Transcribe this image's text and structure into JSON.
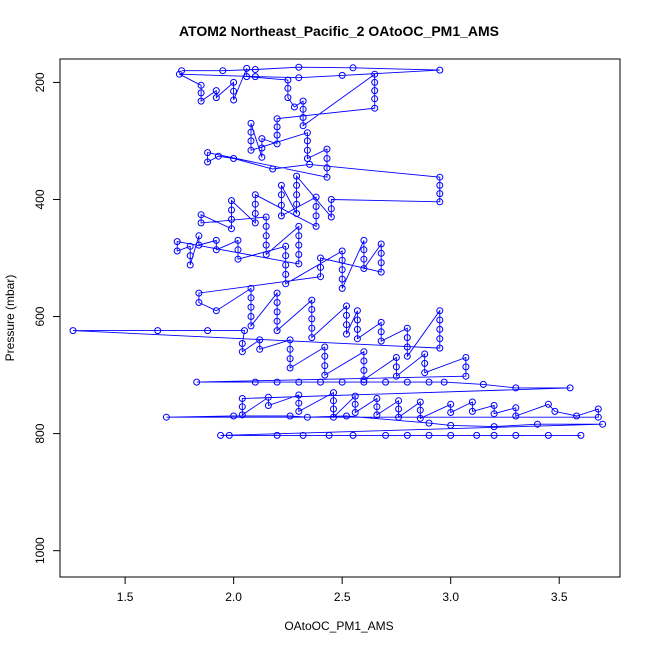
{
  "chart_data": {
    "type": "scatter",
    "title": "ATOM2 Northeast_Pacific_2 OAtoOC_PM1_AMS",
    "xlabel": "OAtoOC_PM1_AMS",
    "ylabel": "Pressure (mbar)",
    "xlim": [
      1.2,
      3.78
    ],
    "ylim": [
      1045,
      160
    ],
    "y_inverted": true,
    "grid": false,
    "legend": "none",
    "x_ticks": [
      1.5,
      2.0,
      2.5,
      3.0,
      3.5
    ],
    "x_tick_labels": [
      "1.5",
      "2.0",
      "2.5",
      "3.0",
      "3.5"
    ],
    "y_ticks": [
      200,
      400,
      600,
      800,
      1000
    ],
    "y_tick_labels": [
      "200",
      "400",
      "600",
      "800",
      "1000"
    ],
    "colors": {
      "series": "#0000ff",
      "axis": "#000000"
    },
    "series": [
      {
        "marker": "open-circle",
        "connected": true,
        "points": [
          [
            1.76,
            180
          ],
          [
            1.95,
            180
          ],
          [
            2.1,
            178
          ],
          [
            2.3,
            174
          ],
          [
            2.55,
            175
          ],
          [
            2.95,
            179
          ],
          [
            2.5,
            188
          ],
          [
            2.3,
            192
          ],
          [
            2.1,
            190
          ],
          [
            1.75,
            186
          ],
          [
            1.85,
            205
          ],
          [
            1.85,
            218
          ],
          [
            1.85,
            232
          ],
          [
            1.92,
            214
          ],
          [
            1.92,
            226
          ],
          [
            2.0,
            200
          ],
          [
            2.0,
            215
          ],
          [
            2.0,
            230
          ],
          [
            2.06,
            176
          ],
          [
            2.06,
            190
          ],
          [
            2.25,
            196
          ],
          [
            2.25,
            210
          ],
          [
            2.25,
            226
          ],
          [
            2.28,
            242
          ],
          [
            2.32,
            232
          ],
          [
            2.32,
            246
          ],
          [
            2.32,
            260
          ],
          [
            2.32,
            274
          ],
          [
            2.65,
            186
          ],
          [
            2.65,
            200
          ],
          [
            2.65,
            214
          ],
          [
            2.65,
            228
          ],
          [
            2.65,
            244
          ],
          [
            2.2,
            262
          ],
          [
            2.2,
            276
          ],
          [
            2.2,
            290
          ],
          [
            2.2,
            305
          ],
          [
            2.13,
            296
          ],
          [
            2.13,
            312
          ],
          [
            2.13,
            328
          ],
          [
            2.08,
            270
          ],
          [
            2.08,
            285
          ],
          [
            2.08,
            300
          ],
          [
            2.08,
            316
          ],
          [
            2.34,
            286
          ],
          [
            2.34,
            300
          ],
          [
            2.34,
            316
          ],
          [
            2.34,
            330
          ],
          [
            2.43,
            314
          ],
          [
            2.43,
            330
          ],
          [
            2.43,
            346
          ],
          [
            2.43,
            362
          ],
          [
            1.88,
            320
          ],
          [
            1.88,
            336
          ],
          [
            1.93,
            326
          ],
          [
            2.0,
            330
          ],
          [
            2.18,
            348
          ],
          [
            2.35,
            340
          ],
          [
            2.95,
            362
          ],
          [
            2.95,
            376
          ],
          [
            2.95,
            390
          ],
          [
            2.95,
            404
          ],
          [
            2.45,
            400
          ],
          [
            2.45,
            416
          ],
          [
            2.45,
            430
          ],
          [
            2.29,
            360
          ],
          [
            2.29,
            376
          ],
          [
            2.29,
            392
          ],
          [
            2.29,
            408
          ],
          [
            2.29,
            424
          ],
          [
            2.22,
            376
          ],
          [
            2.22,
            392
          ],
          [
            2.22,
            410
          ],
          [
            2.22,
            428
          ],
          [
            2.38,
            396
          ],
          [
            2.38,
            412
          ],
          [
            2.38,
            428
          ],
          [
            2.38,
            446
          ],
          [
            2.1,
            392
          ],
          [
            2.1,
            408
          ],
          [
            2.1,
            424
          ],
          [
            2.1,
            440
          ],
          [
            1.99,
            402
          ],
          [
            1.99,
            418
          ],
          [
            1.99,
            434
          ],
          [
            1.99,
            450
          ],
          [
            1.85,
            426
          ],
          [
            1.85,
            440
          ],
          [
            2.15,
            430
          ],
          [
            2.15,
            446
          ],
          [
            2.15,
            462
          ],
          [
            2.15,
            478
          ],
          [
            2.15,
            494
          ],
          [
            2.3,
            446
          ],
          [
            2.3,
            462
          ],
          [
            2.3,
            478
          ],
          [
            2.3,
            494
          ],
          [
            2.3,
            510
          ],
          [
            1.74,
            472
          ],
          [
            1.74,
            488
          ],
          [
            1.8,
            480
          ],
          [
            1.8,
            496
          ],
          [
            1.8,
            512
          ],
          [
            1.84,
            462
          ],
          [
            1.84,
            478
          ],
          [
            1.92,
            470
          ],
          [
            1.92,
            486
          ],
          [
            2.02,
            470
          ],
          [
            2.02,
            486
          ],
          [
            2.02,
            502
          ],
          [
            2.24,
            480
          ],
          [
            2.24,
            496
          ],
          [
            2.24,
            512
          ],
          [
            2.24,
            528
          ],
          [
            2.24,
            544
          ],
          [
            2.5,
            488
          ],
          [
            2.5,
            504
          ],
          [
            2.5,
            520
          ],
          [
            2.5,
            536
          ],
          [
            2.5,
            552
          ],
          [
            2.6,
            470
          ],
          [
            2.6,
            486
          ],
          [
            2.6,
            502
          ],
          [
            2.6,
            518
          ],
          [
            2.68,
            476
          ],
          [
            2.68,
            492
          ],
          [
            2.68,
            508
          ],
          [
            2.68,
            524
          ],
          [
            2.4,
            500
          ],
          [
            2.4,
            516
          ],
          [
            2.4,
            532
          ],
          [
            1.84,
            560
          ],
          [
            1.84,
            576
          ],
          [
            1.92,
            590
          ],
          [
            2.08,
            552
          ],
          [
            2.08,
            568
          ],
          [
            2.08,
            584
          ],
          [
            2.08,
            600
          ],
          [
            2.08,
            616
          ],
          [
            2.2,
            560
          ],
          [
            2.2,
            576
          ],
          [
            2.2,
            592
          ],
          [
            2.2,
            608
          ],
          [
            2.2,
            624
          ],
          [
            2.36,
            572
          ],
          [
            2.36,
            588
          ],
          [
            2.36,
            604
          ],
          [
            2.36,
            620
          ],
          [
            2.36,
            636
          ],
          [
            2.52,
            582
          ],
          [
            2.52,
            598
          ],
          [
            2.52,
            614
          ],
          [
            2.52,
            630
          ],
          [
            2.57,
            590
          ],
          [
            2.57,
            606
          ],
          [
            2.57,
            622
          ],
          [
            2.57,
            638
          ],
          [
            2.68,
            610
          ],
          [
            2.68,
            626
          ],
          [
            2.68,
            642
          ],
          [
            2.8,
            620
          ],
          [
            2.8,
            636
          ],
          [
            2.8,
            652
          ],
          [
            2.8,
            668
          ],
          [
            2.95,
            590
          ],
          [
            2.95,
            606
          ],
          [
            2.95,
            622
          ],
          [
            2.95,
            638
          ],
          [
            2.95,
            654
          ],
          [
            1.26,
            624
          ],
          [
            1.65,
            624
          ],
          [
            1.88,
            624
          ],
          [
            2.05,
            624
          ],
          [
            2.04,
            646
          ],
          [
            2.04,
            660
          ],
          [
            2.12,
            640
          ],
          [
            2.12,
            656
          ],
          [
            2.26,
            640
          ],
          [
            2.26,
            656
          ],
          [
            2.26,
            672
          ],
          [
            2.26,
            688
          ],
          [
            2.42,
            652
          ],
          [
            2.42,
            668
          ],
          [
            2.42,
            684
          ],
          [
            2.42,
            700
          ],
          [
            2.6,
            660
          ],
          [
            2.6,
            676
          ],
          [
            2.6,
            692
          ],
          [
            2.6,
            708
          ],
          [
            2.75,
            670
          ],
          [
            2.75,
            686
          ],
          [
            2.75,
            702
          ],
          [
            2.88,
            664
          ],
          [
            2.88,
            680
          ],
          [
            2.88,
            696
          ],
          [
            3.07,
            670
          ],
          [
            3.07,
            686
          ],
          [
            3.07,
            702
          ],
          [
            1.83,
            712
          ],
          [
            2.1,
            712
          ],
          [
            2.2,
            712
          ],
          [
            2.3,
            712
          ],
          [
            2.4,
            712
          ],
          [
            2.5,
            712
          ],
          [
            2.6,
            712
          ],
          [
            2.7,
            712
          ],
          [
            2.8,
            712
          ],
          [
            2.9,
            712
          ],
          [
            2.97,
            712
          ],
          [
            3.15,
            716
          ],
          [
            3.3,
            722
          ],
          [
            3.55,
            722
          ],
          [
            2.04,
            740
          ],
          [
            2.04,
            754
          ],
          [
            2.04,
            768
          ],
          [
            2.16,
            738
          ],
          [
            2.16,
            752
          ],
          [
            2.3,
            734
          ],
          [
            2.3,
            748
          ],
          [
            2.3,
            762
          ],
          [
            2.46,
            730
          ],
          [
            2.46,
            744
          ],
          [
            2.46,
            758
          ],
          [
            2.46,
            772
          ],
          [
            2.56,
            736
          ],
          [
            2.56,
            750
          ],
          [
            2.56,
            764
          ],
          [
            2.66,
            740
          ],
          [
            2.66,
            754
          ],
          [
            2.66,
            768
          ],
          [
            2.76,
            744
          ],
          [
            2.76,
            758
          ],
          [
            2.76,
            772
          ],
          [
            2.86,
            746
          ],
          [
            2.86,
            760
          ],
          [
            2.86,
            774
          ],
          [
            3.0,
            750
          ],
          [
            3.0,
            764
          ],
          [
            3.1,
            746
          ],
          [
            3.1,
            762
          ],
          [
            3.2,
            752
          ],
          [
            3.2,
            766
          ],
          [
            3.3,
            756
          ],
          [
            3.3,
            770
          ],
          [
            3.45,
            750
          ],
          [
            3.48,
            762
          ],
          [
            3.58,
            770
          ],
          [
            3.68,
            758
          ],
          [
            3.68,
            772
          ],
          [
            1.69,
            772
          ],
          [
            2.0,
            770
          ],
          [
            2.26,
            770
          ],
          [
            2.34,
            772
          ],
          [
            2.52,
            770
          ],
          [
            2.9,
            782
          ],
          [
            3.0,
            786
          ],
          [
            3.2,
            788
          ],
          [
            3.4,
            784
          ],
          [
            3.7,
            784
          ],
          [
            1.94,
            803
          ],
          [
            1.98,
            803
          ],
          [
            2.2,
            803
          ],
          [
            2.32,
            803
          ],
          [
            2.44,
            803
          ],
          [
            2.55,
            803
          ],
          [
            2.7,
            803
          ],
          [
            2.8,
            803
          ],
          [
            2.9,
            803
          ],
          [
            3.0,
            803
          ],
          [
            3.12,
            803
          ],
          [
            3.2,
            803
          ],
          [
            3.3,
            803
          ],
          [
            3.45,
            803
          ],
          [
            3.6,
            803
          ]
        ]
      }
    ]
  }
}
